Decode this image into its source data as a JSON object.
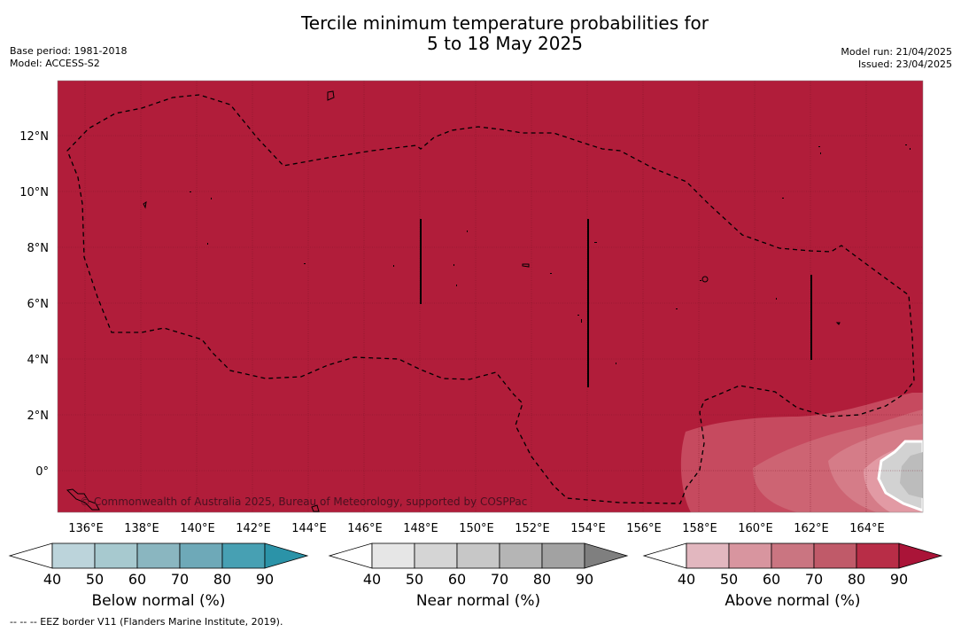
{
  "title": {
    "line1": "Tercile minimum temperature probabilities for",
    "line2": "5 to 18 May 2025"
  },
  "meta": {
    "base_period": "Base period: 1981-2018",
    "model": "Model: ACCESS-S2",
    "model_run": "Model run: 21/04/2025",
    "issued": "Issued: 23/04/2025"
  },
  "map": {
    "copyright": "© Commonwealth of Australia 2025, Bureau of Meteorology, supported by COSPPac",
    "background_color": "#b11d3a",
    "lon_labels": [
      "136°E",
      "138°E",
      "140°E",
      "142°E",
      "144°E",
      "146°E",
      "148°E",
      "150°E",
      "152°E",
      "154°E",
      "156°E",
      "158°E",
      "160°E",
      "162°E",
      "164°E"
    ],
    "lat_labels": [
      "12°N",
      "10°N",
      "8°N",
      "6°N",
      "4°N",
      "2°N",
      "0°"
    ]
  },
  "colorbars": [
    {
      "label": "Below normal (%)",
      "ticks": [
        "40",
        "50",
        "60",
        "70",
        "80",
        "90"
      ],
      "colors": [
        "#ffffff",
        "#bcd4db",
        "#a7c9cf",
        "#8ab6c0",
        "#6ea9b8",
        "#47a0b3",
        "#2b93a8"
      ]
    },
    {
      "label": "Near normal (%)",
      "ticks": [
        "40",
        "50",
        "60",
        "70",
        "80",
        "90"
      ],
      "colors": [
        "#ffffff",
        "#e6e6e6",
        "#d5d5d5",
        "#c7c7c7",
        "#b5b5b5",
        "#a2a2a2",
        "#7f7f7f"
      ]
    },
    {
      "label": "Above normal (%)",
      "ticks": [
        "40",
        "50",
        "60",
        "70",
        "80",
        "90"
      ],
      "colors": [
        "#ffffff",
        "#e2b7bf",
        "#d8959f",
        "#ca7581",
        "#c05a69",
        "#b82d47",
        "#aa1438"
      ]
    }
  ],
  "footnote": "--  --  -- EEZ border V11 (Flanders Marine Institute, 2019)."
}
